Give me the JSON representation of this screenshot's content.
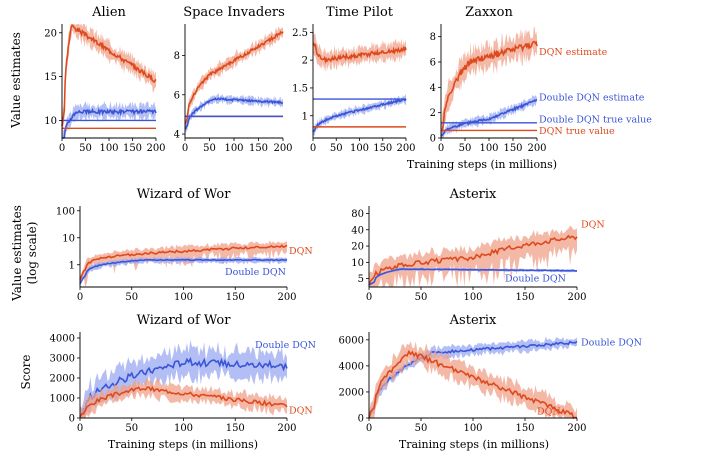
{
  "colors": {
    "dqn": "#dd4a1e",
    "dqn_fill": "#f0a088",
    "ddqn": "#3a55d8",
    "ddqn_fill": "#9aaaf0"
  },
  "labels": {
    "value_estimates": "Value estimates",
    "value_estimates_log": "(log scale)",
    "score": "Score",
    "training_steps": "Training steps (in millions)"
  },
  "chart_data": [
    {
      "id": "alien",
      "type": "line",
      "title": "Alien",
      "x": [
        0,
        200
      ],
      "ylim": [
        8,
        21
      ],
      "yticks": [
        10,
        15,
        20
      ],
      "xticks": [
        0,
        50,
        100,
        150,
        200
      ],
      "series": [
        {
          "name": "DQN",
          "start": 9.5,
          "peak": [
            20.8,
            20
          ],
          "end": 14.5,
          "noise": 1.0
        },
        {
          "name": "Double DQN",
          "start": 7.5,
          "peak": [
            11.0,
            30
          ],
          "end": 11.0,
          "noise": 0.8
        }
      ],
      "true_values": {
        "DQN": 9.1,
        "Double DQN": 10.0
      }
    },
    {
      "id": "space-invaders",
      "type": "line",
      "title": "Space Invaders",
      "x": [
        0,
        200
      ],
      "ylim": [
        3.8,
        9.6
      ],
      "yticks": [
        4,
        6,
        8
      ],
      "xticks": [
        0,
        50,
        100,
        150,
        200
      ],
      "series": [
        {
          "name": "DQN",
          "start": 4.5,
          "peak": [
            7.0,
            50
          ],
          "end": 9.2,
          "noise": 0.3
        },
        {
          "name": "Double DQN",
          "start": 4.2,
          "peak": [
            5.8,
            60
          ],
          "end": 5.6,
          "noise": 0.2
        }
      ],
      "true_values": {
        "DQN": 4.9,
        "Double DQN": 4.9
      }
    },
    {
      "id": "time-pilot",
      "type": "line",
      "title": "Time Pilot",
      "x": [
        0,
        200
      ],
      "ylim": [
        0.6,
        2.65
      ],
      "yticks": [
        1.0,
        1.5,
        2.0,
        2.5
      ],
      "xticks": [
        0,
        50,
        100,
        150,
        200
      ],
      "series": [
        {
          "name": "DQN",
          "start": 2.3,
          "peak": [
            2.0,
            20
          ],
          "end": 2.2,
          "noise": 0.15
        },
        {
          "name": "Double DQN",
          "start": 0.7,
          "peak": [
            1.1,
            100
          ],
          "end": 1.3,
          "noise": 0.07
        }
      ],
      "true_values": {
        "DQN": 0.8,
        "Double DQN": 1.3
      }
    },
    {
      "id": "zaxxon",
      "type": "line",
      "title": "Zaxxon",
      "x": [
        0,
        200
      ],
      "ylim": [
        0,
        9
      ],
      "yticks": [
        0,
        2,
        4,
        6,
        8
      ],
      "xticks": [
        0,
        50,
        100,
        150,
        200
      ],
      "series": [
        {
          "name": "DQN",
          "start": 0.2,
          "peak": [
            6.0,
            60
          ],
          "end": 7.5,
          "noise": 1.0
        },
        {
          "name": "Double DQN",
          "start": 0.1,
          "peak": [
            1.5,
            100
          ],
          "end": 3.0,
          "noise": 0.35
        }
      ],
      "true_values": {
        "DQN": 0.6,
        "Double DQN": 1.2
      },
      "annotations": [
        "DQN estimate",
        "Double DQN estimate",
        "Double DQN true value",
        "DQN true value"
      ]
    },
    {
      "id": "wizard-value",
      "type": "line",
      "title": "Wizard of Wor",
      "x": [
        0,
        200
      ],
      "ylim": [
        0.15,
        150
      ],
      "yscale": "log",
      "yticks": [
        1,
        10,
        100
      ],
      "ytick_labels": [
        "1",
        "10",
        "100"
      ],
      "xticks": [
        0,
        50,
        100,
        150,
        200
      ],
      "series": [
        {
          "name": "DQN",
          "start": 0.3,
          "peak": [
            3.0,
            90
          ],
          "end": 5.0,
          "noise": 0.5
        },
        {
          "name": "Double DQN",
          "start": 0.2,
          "peak": [
            1.5,
            60
          ],
          "end": 1.5,
          "noise": 0.2
        }
      ],
      "annotations": [
        "DQN",
        "Double DQN"
      ]
    },
    {
      "id": "asterix-value",
      "type": "line",
      "title": "Asterix",
      "x": [
        0,
        200
      ],
      "ylim": [
        3.5,
        110
      ],
      "yscale": "log",
      "yticks": [
        5,
        10,
        20,
        40,
        80
      ],
      "ytick_labels": [
        "5",
        "10",
        "20",
        "40",
        "80"
      ],
      "xticks": [
        0,
        50,
        100,
        150,
        200
      ],
      "series": [
        {
          "name": "DQN",
          "start": 4,
          "peak": [
            12,
            100
          ],
          "end": 30,
          "noise": 0.5
        },
        {
          "name": "Double DQN",
          "start": 3.8,
          "peak": [
            7.5,
            30
          ],
          "end": 7.0,
          "noise": 0.05
        }
      ],
      "annotations": [
        "DQN",
        "Double DQN"
      ]
    },
    {
      "id": "wizard-score",
      "type": "line",
      "title": "Wizard of Wor",
      "x": [
        0,
        200
      ],
      "ylim": [
        0,
        4300
      ],
      "yticks": [
        0,
        1000,
        2000,
        3000,
        4000
      ],
      "xticks": [
        0,
        50,
        100,
        150,
        200
      ],
      "series": [
        {
          "name": "Double DQN",
          "start": 100,
          "peak": [
            2800,
            100
          ],
          "end": 2600,
          "noise": 700
        },
        {
          "name": "DQN",
          "start": 100,
          "peak": [
            1500,
            60
          ],
          "end": 600,
          "noise": 400
        }
      ],
      "annotations": [
        "Double DQN",
        "DQN"
      ]
    },
    {
      "id": "asterix-score",
      "type": "line",
      "title": "Asterix",
      "x": [
        0,
        200
      ],
      "ylim": [
        0,
        6600
      ],
      "yticks": [
        0,
        2000,
        4000,
        6000
      ],
      "xticks": [
        0,
        50,
        100,
        150,
        200
      ],
      "series": [
        {
          "name": "Double DQN",
          "start": 100,
          "peak": [
            5000,
            60
          ],
          "end": 5800,
          "noise": 400
        },
        {
          "name": "DQN",
          "start": 100,
          "peak": [
            5000,
            40
          ],
          "end": 50,
          "noise": 800
        }
      ],
      "annotations": [
        "Double DQN",
        "DQN"
      ]
    }
  ]
}
